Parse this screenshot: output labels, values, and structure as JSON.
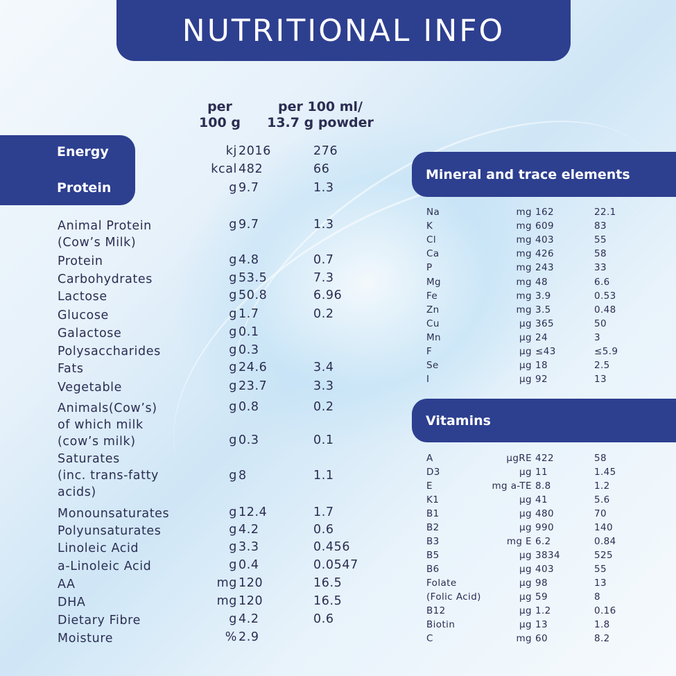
{
  "title": "NUTRITIONAL INFO",
  "columns": {
    "per100g": "per\n100 g",
    "per100ml": "per 100 ml/\n13.7 g powder"
  },
  "left_banner": {
    "energy": "Energy",
    "protein": "Protein"
  },
  "rows": [
    {
      "label": "",
      "unit": "kj",
      "v1": "2016",
      "v2": "276"
    },
    {
      "label": "",
      "unit": "kcal",
      "v1": "482",
      "v2": "66"
    },
    {
      "label": "",
      "unit": "g",
      "v1": "9.7",
      "v2": "1.3"
    },
    {
      "label": "Animal Protein\n(Cow’s Milk)",
      "unit": "g",
      "v1": "9.7",
      "v2": "1.3"
    },
    {
      "label": "Protein",
      "unit": "g",
      "v1": "4.8",
      "v2": "0.7"
    },
    {
      "label": "Carbohydrates",
      "unit": "g",
      "v1": "53.5",
      "v2": "7.3"
    },
    {
      "label": "Lactose",
      "unit": "g",
      "v1": "50.8",
      "v2": "6.96"
    },
    {
      "label": "Glucose",
      "unit": "g",
      "v1": "1.7",
      "v2": "0.2"
    },
    {
      "label": "Galactose",
      "unit": "g",
      "v1": "0.1",
      "v2": ""
    },
    {
      "label": "Polysaccharides",
      "unit": "g",
      "v1": "0.3",
      "v2": ""
    },
    {
      "label": "Fats",
      "unit": "g",
      "v1": "24.6",
      "v2": "3.4"
    },
    {
      "label": "Vegetable",
      "unit": "g",
      "v1": "23.7",
      "v2": "3.3"
    },
    {
      "label": "Animals(Cow’s)\nof which milk",
      "unit": "g",
      "v1": "0.8",
      "v2": "0.2"
    },
    {
      "label": "(cow’s milk)",
      "unit": "g",
      "v1": "0.3",
      "v2": "0.1"
    },
    {
      "label": "Saturates\n(inc. trans-fatty\nacids)",
      "unit": "g",
      "v1": "8",
      "v2": "1.1"
    },
    {
      "label": "Monounsaturates",
      "unit": "g",
      "v1": "12.4",
      "v2": "1.7"
    },
    {
      "label": "Polyunsaturates",
      "unit": "g",
      "v1": "4.2",
      "v2": "0.6"
    },
    {
      "label": "Linoleic Acid",
      "unit": "g",
      "v1": "3.3",
      "v2": "0.456"
    },
    {
      "label": "a-Linoleic Acid",
      "unit": "g",
      "v1": "0.4",
      "v2": "0.0547"
    },
    {
      "label": "AA",
      "unit": "mg",
      "v1": "120",
      "v2": "16.5"
    },
    {
      "label": "DHA",
      "unit": "mg",
      "v1": "120",
      "v2": "16.5"
    },
    {
      "label": "Dietary Fibre",
      "unit": "g",
      "v1": "4.2",
      "v2": "0.6"
    },
    {
      "label": "Moisture",
      "unit": "%",
      "v1": "2.9",
      "v2": ""
    }
  ],
  "minerals": {
    "title": "Mineral and trace elements",
    "items": [
      {
        "sym": "Na",
        "unit": "mg",
        "v1": "162",
        "v2": "22.1"
      },
      {
        "sym": "K",
        "unit": "mg",
        "v1": "609",
        "v2": "83"
      },
      {
        "sym": "Cl",
        "unit": "mg",
        "v1": "403",
        "v2": "55"
      },
      {
        "sym": "Ca",
        "unit": "mg",
        "v1": "426",
        "v2": "58"
      },
      {
        "sym": "P",
        "unit": "mg",
        "v1": "243",
        "v2": "33"
      },
      {
        "sym": "Mg",
        "unit": "mg",
        "v1": "48",
        "v2": "6.6"
      },
      {
        "sym": "Fe",
        "unit": "mg",
        "v1": "3.9",
        "v2": "0.53"
      },
      {
        "sym": "Zn",
        "unit": "mg",
        "v1": "3.5",
        "v2": "0.48"
      },
      {
        "sym": "Cu",
        "unit": "µg",
        "v1": "365",
        "v2": "50"
      },
      {
        "sym": "Mn",
        "unit": "µg",
        "v1": "24",
        "v2": "3"
      },
      {
        "sym": "F",
        "unit": "µg",
        "v1": "≤43",
        "v2": "≤5.9"
      },
      {
        "sym": "Se",
        "unit": "µg",
        "v1": "18",
        "v2": "2.5"
      },
      {
        "sym": "I",
        "unit": "µg",
        "v1": "92",
        "v2": "13"
      }
    ]
  },
  "vitamins": {
    "title": "Vitamins",
    "items": [
      {
        "sym": "A",
        "unit": "µgRE",
        "v1": "422",
        "v2": "58"
      },
      {
        "sym": "D3",
        "unit": "µg",
        "v1": "11",
        "v2": "1.45"
      },
      {
        "sym": "E",
        "unit": "mg a-TE",
        "v1": "8.8",
        "v2": "1.2"
      },
      {
        "sym": "K1",
        "unit": "µg",
        "v1": "41",
        "v2": "5.6"
      },
      {
        "sym": "B1",
        "unit": "µg",
        "v1": "480",
        "v2": "70"
      },
      {
        "sym": "B2",
        "unit": "µg",
        "v1": "990",
        "v2": "140"
      },
      {
        "sym": "B3",
        "unit": "mg E",
        "v1": "6.2",
        "v2": "0.84"
      },
      {
        "sym": "B5",
        "unit": "µg",
        "v1": "3834",
        "v2": "525"
      },
      {
        "sym": "B6",
        "unit": "µg",
        "v1": "403",
        "v2": "55"
      },
      {
        "sym": "Folate",
        "unit": "µg",
        "v1": "98",
        "v2": "13"
      },
      {
        "sym": "(Folic Acid)",
        "unit": "µg",
        "v1": "59",
        "v2": "8"
      },
      {
        "sym": "B12",
        "unit": "µg",
        "v1": "1.2",
        "v2": "0.16"
      },
      {
        "sym": "Biotin",
        "unit": "µg",
        "v1": "13",
        "v2": "1.8"
      },
      {
        "sym": "C",
        "unit": "mg",
        "v1": "60",
        "v2": "8.2"
      }
    ]
  }
}
